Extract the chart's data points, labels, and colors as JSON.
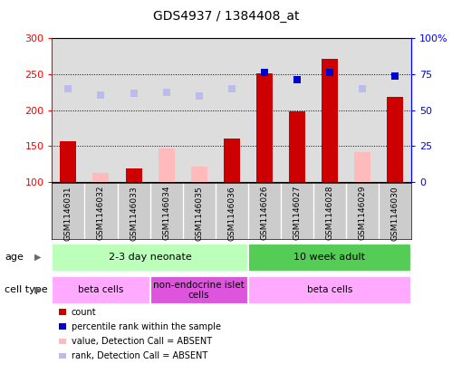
{
  "title": "GDS4937 / 1384408_at",
  "samples": [
    "GSM1146031",
    "GSM1146032",
    "GSM1146033",
    "GSM1146034",
    "GSM1146035",
    "GSM1146036",
    "GSM1146026",
    "GSM1146027",
    "GSM1146028",
    "GSM1146029",
    "GSM1146030"
  ],
  "count_values": [
    157,
    null,
    119,
    null,
    null,
    160,
    251,
    198,
    272,
    null,
    218
  ],
  "count_absent": [
    null,
    113,
    null,
    146,
    121,
    null,
    null,
    null,
    null,
    141,
    null
  ],
  "rank_values": [
    null,
    null,
    null,
    null,
    null,
    null,
    253,
    242,
    253,
    null,
    248
  ],
  "rank_absent": [
    230,
    221,
    223,
    225,
    220,
    230,
    null,
    null,
    null,
    230,
    null
  ],
  "ylim_left": [
    100,
    300
  ],
  "yticks_left": [
    100,
    150,
    200,
    250,
    300
  ],
  "yticks_right": [
    0,
    25,
    50,
    75,
    100
  ],
  "ytick_labels_right": [
    "0",
    "25",
    "50",
    "75",
    "100%"
  ],
  "bar_color_dark_red": "#cc0000",
  "bar_color_pink": "#ffbbbb",
  "dot_color_dark_blue": "#0000cc",
  "dot_color_light_blue": "#bbbbee",
  "age_groups": [
    {
      "label": "2-3 day neonate",
      "start": 0,
      "end": 6,
      "color": "#bbffbb"
    },
    {
      "label": "10 week adult",
      "start": 6,
      "end": 11,
      "color": "#55cc55"
    }
  ],
  "cell_groups": [
    {
      "label": "beta cells",
      "start": 0,
      "end": 3,
      "color": "#ffaaff"
    },
    {
      "label": "non-endocrine islet\ncells",
      "start": 3,
      "end": 6,
      "color": "#dd55dd"
    },
    {
      "label": "beta cells",
      "start": 6,
      "end": 11,
      "color": "#ffaaff"
    }
  ],
  "legend_items": [
    {
      "label": "count",
      "color": "#cc0000"
    },
    {
      "label": "percentile rank within the sample",
      "color": "#0000cc"
    },
    {
      "label": "value, Detection Call = ABSENT",
      "color": "#ffbbbb"
    },
    {
      "label": "rank, Detection Call = ABSENT",
      "color": "#bbbbee"
    }
  ],
  "plot_bg": "#dddddd",
  "sample_bg": "#cccccc"
}
